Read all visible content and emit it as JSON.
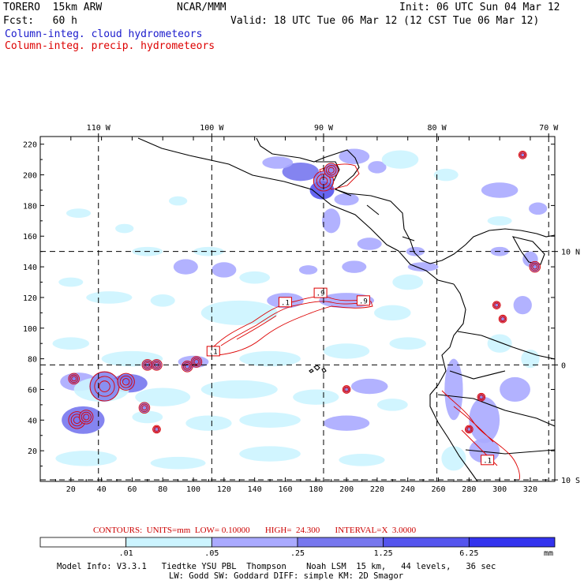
{
  "header": {
    "model": "TORERO  15km ARW",
    "org": "NCAR/MMM",
    "init": "Init: 06 UTC Sun 04 Mar 12",
    "fcst": "Fcst:   60 h",
    "valid": "Valid: 18 UTC Tue 06 Mar 12 (12 CST Tue 06 Mar 12)"
  },
  "fields": {
    "cloud": "Column-integ. cloud hydrometeors",
    "precip": "Column-integ. precip. hydrometeors"
  },
  "colors": {
    "cloud_label": "#1a1acc",
    "precip_label": "#dd0000",
    "contour": "#dd0000",
    "land": "#000000"
  },
  "top_ticks": [
    {
      "label": "110 W",
      "gx": 38
    },
    {
      "label": "100 W",
      "gx": 112
    },
    {
      "label": "90 W",
      "gx": 185
    },
    {
      "label": "80 W",
      "gx": 259
    },
    {
      "label": "70 W",
      "gx": 332
    }
  ],
  "right_ticks": [
    {
      "label": "10 N",
      "gy": 150
    },
    {
      "label": "0",
      "gy": 76
    },
    {
      "label": "10 S",
      "gy": 1
    }
  ],
  "x_ticks": [
    "20",
    "40",
    "60",
    "80",
    "100",
    "120",
    "140",
    "160",
    "180",
    "200",
    "220",
    "240",
    "260",
    "280",
    "300",
    "320"
  ],
  "y_ticks": [
    "20",
    "40",
    "60",
    "80",
    "100",
    "120",
    "140",
    "160",
    "180",
    "200",
    "220"
  ],
  "cloud_patches": [
    {
      "gx": 170,
      "gy": 202,
      "rx": 12,
      "ry": 6,
      "level": 2
    },
    {
      "gx": 184,
      "gy": 190,
      "rx": 8,
      "ry": 6,
      "level": 3
    },
    {
      "gx": 155,
      "gy": 208,
      "rx": 10,
      "ry": 4,
      "level": 1
    },
    {
      "gx": 205,
      "gy": 212,
      "rx": 10,
      "ry": 5,
      "level": 1
    },
    {
      "gx": 220,
      "gy": 205,
      "rx": 6,
      "ry": 4,
      "level": 1
    },
    {
      "gx": 200,
      "gy": 184,
      "rx": 8,
      "ry": 4,
      "level": 1
    },
    {
      "gx": 190,
      "gy": 170,
      "rx": 6,
      "ry": 8,
      "level": 1
    },
    {
      "gx": 215,
      "gy": 155,
      "rx": 8,
      "ry": 4,
      "level": 1
    },
    {
      "gx": 245,
      "gy": 150,
      "rx": 6,
      "ry": 3,
      "level": 1
    },
    {
      "gx": 250,
      "gy": 140,
      "rx": 10,
      "ry": 3,
      "level": 1
    },
    {
      "gx": 235,
      "gy": 210,
      "rx": 12,
      "ry": 6,
      "level": 0
    },
    {
      "gx": 265,
      "gy": 200,
      "rx": 8,
      "ry": 4,
      "level": 0
    },
    {
      "gx": 300,
      "gy": 190,
      "rx": 12,
      "ry": 5,
      "level": 1
    },
    {
      "gx": 325,
      "gy": 178,
      "rx": 6,
      "ry": 4,
      "level": 1
    },
    {
      "gx": 300,
      "gy": 170,
      "rx": 8,
      "ry": 3,
      "level": 0
    },
    {
      "gx": 320,
      "gy": 145,
      "rx": 5,
      "ry": 5,
      "level": 1
    },
    {
      "gx": 300,
      "gy": 150,
      "rx": 6,
      "ry": 3,
      "level": 1
    },
    {
      "gx": 90,
      "gy": 183,
      "rx": 6,
      "ry": 3,
      "level": 0
    },
    {
      "gx": 110,
      "gy": 150,
      "rx": 10,
      "ry": 3,
      "level": 0
    },
    {
      "gx": 95,
      "gy": 140,
      "rx": 8,
      "ry": 5,
      "level": 1
    },
    {
      "gx": 120,
      "gy": 138,
      "rx": 8,
      "ry": 5,
      "level": 1
    },
    {
      "gx": 140,
      "gy": 133,
      "rx": 10,
      "ry": 4,
      "level": 0
    },
    {
      "gx": 175,
      "gy": 138,
      "rx": 6,
      "ry": 3,
      "level": 1
    },
    {
      "gx": 205,
      "gy": 140,
      "rx": 8,
      "ry": 4,
      "level": 1
    },
    {
      "gx": 25,
      "gy": 175,
      "rx": 8,
      "ry": 3,
      "level": 0
    },
    {
      "gx": 55,
      "gy": 165,
      "rx": 6,
      "ry": 3,
      "level": 0
    },
    {
      "gx": 70,
      "gy": 150,
      "rx": 10,
      "ry": 3,
      "level": 0
    },
    {
      "gx": 20,
      "gy": 130,
      "rx": 8,
      "ry": 3,
      "level": 0
    },
    {
      "gx": 45,
      "gy": 120,
      "rx": 15,
      "ry": 4,
      "level": 0
    },
    {
      "gx": 80,
      "gy": 118,
      "rx": 8,
      "ry": 4,
      "level": 0
    },
    {
      "gx": 130,
      "gy": 110,
      "rx": 25,
      "ry": 8,
      "level": 0
    },
    {
      "gx": 160,
      "gy": 118,
      "rx": 12,
      "ry": 5,
      "level": 1
    },
    {
      "gx": 200,
      "gy": 118,
      "rx": 18,
      "ry": 5,
      "level": 1
    },
    {
      "gx": 230,
      "gy": 110,
      "rx": 12,
      "ry": 5,
      "level": 0
    },
    {
      "gx": 240,
      "gy": 130,
      "rx": 10,
      "ry": 5,
      "level": 0
    },
    {
      "gx": 20,
      "gy": 90,
      "rx": 12,
      "ry": 4,
      "level": 0
    },
    {
      "gx": 60,
      "gy": 80,
      "rx": 20,
      "ry": 5,
      "level": 0
    },
    {
      "gx": 100,
      "gy": 78,
      "rx": 10,
      "ry": 4,
      "level": 1
    },
    {
      "gx": 150,
      "gy": 80,
      "rx": 20,
      "ry": 5,
      "level": 0
    },
    {
      "gx": 200,
      "gy": 85,
      "rx": 15,
      "ry": 5,
      "level": 0
    },
    {
      "gx": 240,
      "gy": 90,
      "rx": 12,
      "ry": 4,
      "level": 0
    },
    {
      "gx": 25,
      "gy": 65,
      "rx": 12,
      "ry": 6,
      "level": 1
    },
    {
      "gx": 58,
      "gy": 64,
      "rx": 12,
      "ry": 6,
      "level": 2
    },
    {
      "gx": 40,
      "gy": 60,
      "rx": 18,
      "ry": 8,
      "level": 0
    },
    {
      "gx": 80,
      "gy": 55,
      "rx": 18,
      "ry": 6,
      "level": 0
    },
    {
      "gx": 130,
      "gy": 60,
      "rx": 25,
      "ry": 6,
      "level": 0
    },
    {
      "gx": 180,
      "gy": 55,
      "rx": 15,
      "ry": 5,
      "level": 0
    },
    {
      "gx": 215,
      "gy": 62,
      "rx": 12,
      "ry": 5,
      "level": 1
    },
    {
      "gx": 230,
      "gy": 50,
      "rx": 10,
      "ry": 4,
      "level": 0
    },
    {
      "gx": 28,
      "gy": 40,
      "rx": 14,
      "ry": 9,
      "level": 2
    },
    {
      "gx": 70,
      "gy": 42,
      "rx": 10,
      "ry": 4,
      "level": 0
    },
    {
      "gx": 110,
      "gy": 38,
      "rx": 15,
      "ry": 5,
      "level": 0
    },
    {
      "gx": 150,
      "gy": 40,
      "rx": 20,
      "ry": 5,
      "level": 0
    },
    {
      "gx": 200,
      "gy": 38,
      "rx": 15,
      "ry": 5,
      "level": 1
    },
    {
      "gx": 30,
      "gy": 15,
      "rx": 20,
      "ry": 5,
      "level": 0
    },
    {
      "gx": 90,
      "gy": 12,
      "rx": 18,
      "ry": 4,
      "level": 0
    },
    {
      "gx": 150,
      "gy": 18,
      "rx": 20,
      "ry": 5,
      "level": 0
    },
    {
      "gx": 210,
      "gy": 14,
      "rx": 15,
      "ry": 4,
      "level": 0
    },
    {
      "gx": 270,
      "gy": 60,
      "rx": 6,
      "ry": 20,
      "level": 1
    },
    {
      "gx": 290,
      "gy": 40,
      "rx": 10,
      "ry": 15,
      "level": 1
    },
    {
      "gx": 310,
      "gy": 60,
      "rx": 10,
      "ry": 8,
      "level": 1
    },
    {
      "gx": 320,
      "gy": 80,
      "rx": 6,
      "ry": 6,
      "level": 0
    },
    {
      "gx": 300,
      "gy": 90,
      "rx": 8,
      "ry": 6,
      "level": 0
    },
    {
      "gx": 315,
      "gy": 115,
      "rx": 6,
      "ry": 6,
      "level": 1
    },
    {
      "gx": 290,
      "gy": 20,
      "rx": 10,
      "ry": 8,
      "level": 1
    },
    {
      "gx": 270,
      "gy": 15,
      "rx": 8,
      "ry": 8,
      "level": 0
    }
  ],
  "precip_cells": [
    {
      "gx": 185,
      "gy": 196,
      "r": 6
    },
    {
      "gx": 190,
      "gy": 203,
      "r": 4
    },
    {
      "gx": 42,
      "gy": 62,
      "r": 9
    },
    {
      "gx": 56,
      "gy": 65,
      "r": 5
    },
    {
      "gx": 22,
      "gy": 67,
      "r": 3
    },
    {
      "gx": 70,
      "gy": 76,
      "r": 3
    },
    {
      "gx": 76,
      "gy": 76,
      "r": 3
    },
    {
      "gx": 96,
      "gy": 75,
      "r": 3
    },
    {
      "gx": 102,
      "gy": 78,
      "r": 3
    },
    {
      "gx": 24,
      "gy": 40,
      "r": 5
    },
    {
      "gx": 30,
      "gy": 42,
      "r": 4
    },
    {
      "gx": 68,
      "gy": 48,
      "r": 3
    },
    {
      "gx": 76,
      "gy": 34,
      "r": 2
    },
    {
      "gx": 200,
      "gy": 60,
      "r": 2
    },
    {
      "gx": 288,
      "gy": 55,
      "r": 2
    },
    {
      "gx": 280,
      "gy": 34,
      "r": 2
    },
    {
      "gx": 298,
      "gy": 115,
      "r": 2
    },
    {
      "gx": 302,
      "gy": 106,
      "r": 2
    },
    {
      "gx": 323,
      "gy": 140,
      "r": 3
    },
    {
      "gx": 315,
      "gy": 213,
      "r": 2
    }
  ],
  "contour_labels": [
    {
      "gx": 113,
      "gy": 85,
      "text": ".1"
    },
    {
      "gx": 160,
      "gy": 117,
      "text": ".1"
    },
    {
      "gx": 183,
      "gy": 123,
      "text": ".9"
    },
    {
      "gx": 211,
      "gy": 118,
      "text": ".9"
    },
    {
      "gx": 292,
      "gy": 14,
      "text": ".1"
    }
  ],
  "contour_info": "CONTOURS:  UNITS=mm  LOW= 0.10000       HIGH=  24.300       INTERVAL=X  3.0000",
  "colorbar": {
    "colors": [
      "#ffffff",
      "#ccf4ff",
      "#aaaaff",
      "#7777ee",
      "#5555ee",
      "#3333ee"
    ],
    "labels": [
      ".01",
      ".05",
      ".25",
      "1.25",
      "6.25"
    ],
    "unit": "mm"
  },
  "footer": {
    "line1": "Model Info: V3.3.1   Tiedtke YSU PBL  Thompson    Noah LSM  15 km,   44 levels,   36 sec",
    "line2": "LW: Godd SW: Goddard DIFF: simple KM: 2D Smagor"
  }
}
